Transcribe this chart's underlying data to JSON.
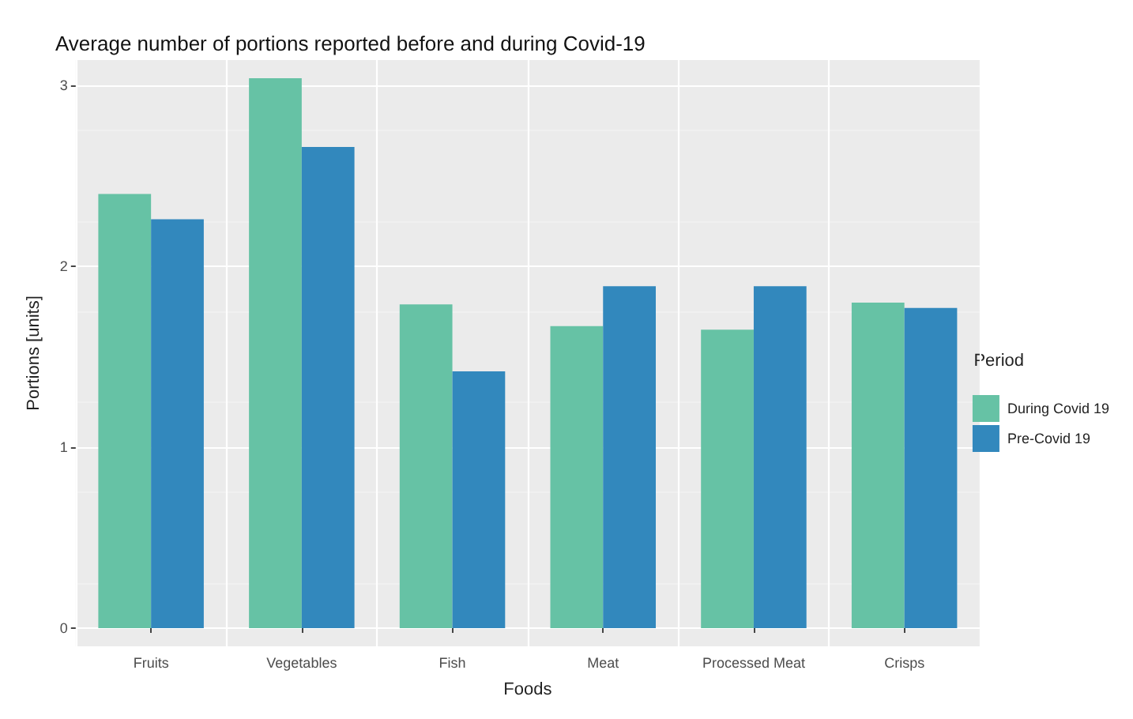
{
  "chart_data": {
    "type": "bar",
    "title": "Average number of portions reported before and during Covid-19",
    "xlabel": "Foods",
    "ylabel": "Portions [units]",
    "legend_title": "Period",
    "categories": [
      "Fruits",
      "Vegetables",
      "Fish",
      "Meat",
      "Processed Meat",
      "Crisps"
    ],
    "series": [
      {
        "name": "During Covid 19",
        "color": "#66c2a5",
        "values": [
          2.4,
          3.04,
          1.79,
          1.67,
          1.65,
          1.8
        ]
      },
      {
        "name": "Pre-Covid 19",
        "color": "#3288bd",
        "values": [
          2.26,
          2.66,
          1.42,
          1.89,
          1.89,
          1.77
        ]
      }
    ],
    "ylim": [
      -0.1,
      3.14
    ],
    "yticks": [
      0,
      1,
      2,
      3
    ],
    "grid": true,
    "legend": "right"
  }
}
